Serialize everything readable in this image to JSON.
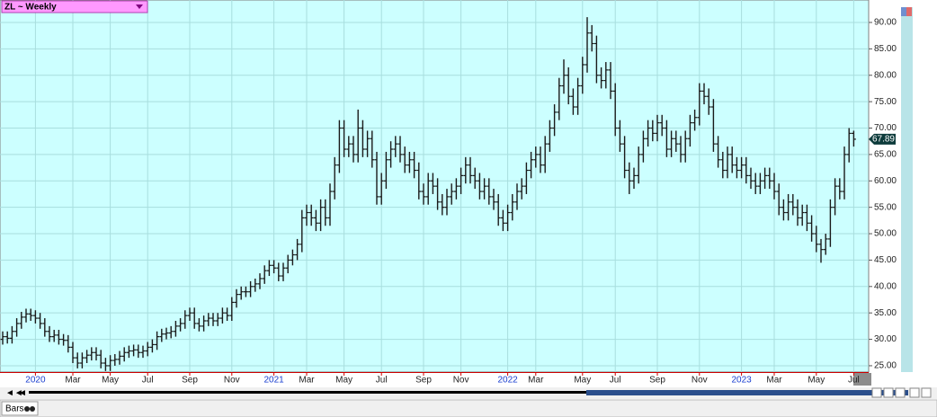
{
  "chart_data": {
    "type": "ohlc",
    "symbol_label": "ZL ~ Weekly",
    "footer_label": "Bars",
    "last_price": 67.89,
    "color": "#1a1a1a",
    "background": "#ccffff",
    "grid": true,
    "categories": [
      null,
      null,
      null,
      null,
      null,
      null,
      null,
      "2020",
      null,
      null,
      null,
      null,
      null,
      null,
      null,
      "Mar",
      null,
      null,
      null,
      null,
      null,
      null,
      null,
      "May",
      null,
      null,
      null,
      null,
      null,
      null,
      null,
      "Jul",
      null,
      null,
      null,
      null,
      null,
      null,
      null,
      null,
      "Sep",
      null,
      null,
      null,
      null,
      null,
      null,
      null,
      null,
      "Nov",
      null,
      null,
      null,
      null,
      null,
      null,
      null,
      null,
      "2021",
      null,
      null,
      null,
      null,
      null,
      null,
      "Mar",
      null,
      null,
      null,
      null,
      null,
      null,
      null,
      "May",
      null,
      null,
      null,
      null,
      null,
      null,
      null,
      "Jul",
      null,
      null,
      null,
      null,
      null,
      null,
      null,
      null,
      "Sep",
      null,
      null,
      null,
      null,
      null,
      null,
      null,
      "Nov",
      null,
      null,
      null,
      null,
      null,
      null,
      null,
      null,
      null,
      "2022",
      null,
      null,
      null,
      null,
      null,
      "Mar",
      null,
      null,
      null,
      null,
      null,
      null,
      null,
      null,
      null,
      "May",
      null,
      null,
      null,
      null,
      null,
      null,
      "Jul",
      null,
      null,
      null,
      null,
      null,
      null,
      null,
      null,
      "Sep",
      null,
      null,
      null,
      null,
      null,
      null,
      null,
      null,
      "Nov",
      null,
      null,
      null,
      null,
      null,
      null,
      null,
      null,
      "2023",
      null,
      null,
      null,
      null,
      null,
      null,
      "Mar",
      null,
      null,
      null,
      null,
      null,
      null,
      null,
      null,
      "May",
      null,
      null,
      null,
      null,
      null,
      null,
      null,
      "Jul"
    ],
    "open": [
      30,
      30.5,
      30.2,
      31.5,
      33,
      34.2,
      34.8,
      34.5,
      34,
      33,
      31.5,
      30.5,
      30.8,
      30,
      29.8,
      28.5,
      26.5,
      25.5,
      26.5,
      27,
      27.5,
      27,
      25.5,
      25,
      26,
      26.2,
      26.8,
      27.5,
      27.8,
      28,
      27.5,
      27.8,
      28.5,
      29,
      30.5,
      31,
      31.2,
      31.5,
      32.5,
      33,
      34.5,
      35,
      33,
      32.5,
      33.5,
      34,
      33.5,
      34,
      35,
      34.5,
      37,
      38.5,
      39,
      39,
      40,
      40.5,
      41.5,
      43,
      44,
      43.5,
      42,
      43.5,
      45,
      46,
      48,
      53,
      54,
      53,
      52,
      55,
      53,
      58,
      63,
      70,
      66,
      67,
      65,
      70,
      66,
      68,
      64,
      57,
      60,
      64,
      66,
      67,
      65,
      63,
      64,
      62,
      58,
      57,
      60,
      59,
      56,
      55,
      57,
      58,
      59,
      61,
      63,
      61,
      60,
      58,
      59,
      57,
      56,
      53,
      52,
      54,
      56,
      58,
      59,
      62,
      64,
      65,
      63,
      67,
      70,
      73,
      78,
      80,
      76,
      74,
      78,
      82,
      88,
      86,
      80,
      79,
      81,
      77,
      70,
      67,
      62,
      60,
      61,
      65,
      68,
      70,
      69,
      71,
      70,
      66,
      68,
      67,
      65,
      68,
      71,
      72,
      77,
      76,
      74,
      67,
      64,
      62,
      65,
      63,
      62,
      63,
      61,
      60,
      59,
      60,
      61,
      60,
      58,
      55,
      54,
      56,
      55,
      53,
      54,
      52,
      50,
      48,
      47,
      49,
      55,
      59,
      58,
      65,
      69
    ],
    "high": [
      31.5,
      31.5,
      32.5,
      34,
      35.2,
      35.8,
      35.8,
      35.5,
      35,
      34,
      32.5,
      31.8,
      31.8,
      31,
      30.8,
      29.5,
      27.5,
      27.5,
      28,
      28.5,
      28.5,
      28,
      26.5,
      27,
      27.2,
      27.8,
      28.5,
      28.8,
      29,
      29,
      28.8,
      29.5,
      30,
      31.5,
      32,
      32.2,
      32.5,
      33.5,
      34,
      35.5,
      36,
      36,
      34,
      34.5,
      35,
      35,
      35,
      36,
      36,
      38,
      39.5,
      40,
      40,
      41,
      41.5,
      42.5,
      44,
      45,
      45,
      44.5,
      44.5,
      46,
      47,
      49,
      54.5,
      55.5,
      55.5,
      54.5,
      56.5,
      56.5,
      59.5,
      64.5,
      71.5,
      71.5,
      68.5,
      68.5,
      73.5,
      71.5,
      69.5,
      69.5,
      65.5,
      61.5,
      65.5,
      67.5,
      68.5,
      68.5,
      66.5,
      65.5,
      65.5,
      63.5,
      59.5,
      61.5,
      61.5,
      60.5,
      57.5,
      58.5,
      59.5,
      60.5,
      62.5,
      64.5,
      64.5,
      62.5,
      61.5,
      60.5,
      60.5,
      58.5,
      57.5,
      54.5,
      55.5,
      57.5,
      59.5,
      60.5,
      63.5,
      65.5,
      66.5,
      66.5,
      68.5,
      71.5,
      74.5,
      79.5,
      83,
      81.5,
      77.5,
      79.5,
      83.5,
      91,
      89.5,
      87.5,
      81.5,
      82.5,
      82.5,
      78.5,
      71.5,
      68.5,
      63.5,
      62.5,
      66.5,
      69.5,
      71.5,
      71.5,
      72.5,
      72.5,
      71.5,
      69.5,
      69.5,
      68.5,
      69.5,
      72.5,
      73.5,
      78.5,
      78.5,
      77.5,
      75.5,
      68.5,
      65.5,
      66.5,
      66.5,
      64.5,
      64.5,
      64.5,
      62.5,
      61.5,
      61.5,
      62.5,
      62.5,
      61.5,
      59.5,
      56.5,
      57.5,
      57.5,
      56.5,
      55.5,
      55.5,
      53.5,
      51.5,
      49,
      50,
      56.5,
      60.5,
      60.5,
      66.5,
      70,
      69.5
    ],
    "low": [
      29,
      29.2,
      29.2,
      30.5,
      32,
      33.2,
      33.5,
      33,
      32,
      30.5,
      29.5,
      29.5,
      29,
      28.8,
      27.5,
      25.5,
      24.5,
      24.5,
      25.5,
      26,
      26,
      24.5,
      24,
      24,
      25,
      25.2,
      25.8,
      26.5,
      26.8,
      26.5,
      26.5,
      26.8,
      27.5,
      28,
      29.5,
      30,
      30.2,
      30.5,
      31.5,
      32,
      33.5,
      32,
      31.5,
      31.5,
      32.5,
      32.5,
      32.5,
      33,
      33.5,
      33.5,
      36,
      37.5,
      38,
      38,
      39,
      39.5,
      40.5,
      42,
      42.5,
      41,
      41,
      42.5,
      44,
      45,
      46.5,
      51.5,
      51.5,
      50.5,
      50.5,
      51.5,
      51.5,
      56.5,
      61.5,
      64.5,
      64.5,
      63.5,
      63.5,
      64.5,
      64.5,
      62.5,
      55.5,
      55.5,
      58.5,
      62.5,
      64.5,
      63.5,
      61.5,
      61.5,
      60.5,
      56.5,
      55.5,
      55.5,
      57.5,
      54.5,
      53.5,
      53.5,
      55.5,
      56.5,
      57.5,
      59.5,
      59.5,
      58.5,
      56.5,
      56.5,
      55.5,
      54.5,
      51.5,
      50.5,
      50.5,
      52.5,
      54.5,
      56.5,
      57.5,
      60.5,
      62.5,
      61.5,
      61.5,
      65.5,
      68.5,
      71.5,
      76.5,
      74.5,
      72.5,
      72.5,
      76.5,
      80.5,
      84.5,
      78.5,
      77.5,
      77.5,
      75.5,
      68.5,
      65.5,
      60.5,
      57.5,
      58.5,
      59.5,
      63.5,
      66.5,
      67.5,
      67.5,
      68.5,
      64.5,
      64.5,
      65.5,
      63.5,
      63.5,
      66.5,
      69.5,
      70.5,
      74.5,
      72.5,
      65.5,
      62.5,
      60.5,
      60.5,
      61.5,
      60.5,
      60.5,
      59.5,
      58.5,
      57.5,
      57.5,
      58.5,
      58.5,
      56.5,
      53.5,
      52.5,
      52.5,
      53.5,
      51.5,
      51.5,
      50.5,
      48.5,
      46.5,
      44.5,
      46,
      47.5,
      53.5,
      56.5,
      56.5,
      63.5,
      66.5
    ],
    "close": [
      30.5,
      30.2,
      31.5,
      33,
      34.2,
      34.8,
      34.5,
      34,
      33,
      31.5,
      30.5,
      30.8,
      30,
      29.8,
      28.5,
      26.5,
      25.5,
      26.5,
      27,
      27.5,
      27,
      25.5,
      25,
      26,
      26.2,
      26.8,
      27.5,
      27.8,
      28,
      27.5,
      27.8,
      28.5,
      29,
      30.5,
      31,
      31.2,
      31.5,
      32.5,
      33,
      34.5,
      35,
      33,
      32.5,
      33.5,
      34,
      33.5,
      34,
      35,
      34.5,
      37,
      38.5,
      39,
      39,
      40,
      40.5,
      41.5,
      43,
      44,
      43.5,
      42,
      43.5,
      45,
      46,
      48,
      53,
      54,
      53,
      52,
      55,
      53,
      58,
      63,
      70,
      66,
      67,
      65,
      70,
      66,
      68,
      64,
      57,
      60,
      64,
      66,
      67,
      65,
      63,
      64,
      62,
      58,
      57,
      60,
      59,
      56,
      55,
      57,
      58,
      59,
      61,
      63,
      61,
      60,
      58,
      59,
      57,
      56,
      53,
      52,
      54,
      56,
      58,
      59,
      62,
      64,
      65,
      63,
      67,
      70,
      73,
      78,
      80,
      76,
      74,
      78,
      82,
      88,
      86,
      80,
      79,
      81,
      77,
      70,
      67,
      62,
      60,
      61,
      65,
      68,
      70,
      69,
      71,
      70,
      66,
      68,
      67,
      65,
      68,
      71,
      72,
      77,
      76,
      74,
      67,
      64,
      62,
      65,
      63,
      62,
      63,
      61,
      60,
      59,
      60,
      61,
      60,
      58,
      55,
      54,
      56,
      55,
      53,
      54,
      52,
      50,
      48,
      47,
      49,
      55,
      59,
      58,
      65,
      69,
      67.89
    ],
    "ylim": [
      23.8,
      94.25
    ],
    "yticks": [
      {
        "value": 25,
        "label": "25.00"
      },
      {
        "value": 30,
        "label": "30.00"
      },
      {
        "value": 35,
        "label": "35.00"
      },
      {
        "value": 40,
        "label": "40.00"
      },
      {
        "value": 45,
        "label": "45.00"
      },
      {
        "value": 50,
        "label": "50.00"
      },
      {
        "value": 55,
        "label": "55.00"
      },
      {
        "value": 60,
        "label": "60.00"
      },
      {
        "value": 65,
        "label": "65.00"
      },
      {
        "value": 70,
        "label": "70.00"
      },
      {
        "value": 75,
        "label": "75.00"
      },
      {
        "value": 80,
        "label": "80.00"
      },
      {
        "value": 85,
        "label": "85.00"
      },
      {
        "value": 90,
        "label": "90.00"
      }
    ]
  }
}
